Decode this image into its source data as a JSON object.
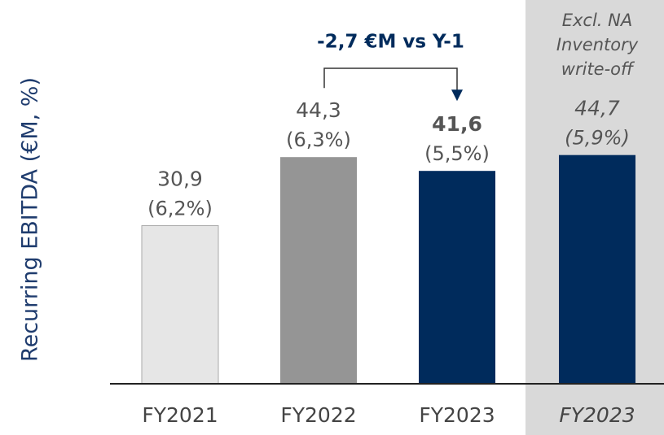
{
  "chart_data": {
    "type": "bar",
    "y_axis_label": "Recurring EBITDA (€M, %)",
    "categories": [
      "FY2021",
      "FY2022",
      "FY2023",
      "FY2023"
    ],
    "values": [
      30.9,
      44.3,
      41.6,
      44.7
    ],
    "value_labels": [
      "30,9",
      "44,3",
      "41,6",
      "44,7"
    ],
    "margin_labels": [
      "(6,2%)",
      "(6,3%)",
      "(5,5%)",
      "(5,9%)"
    ],
    "colors": [
      "#e6e6e6",
      "#959595",
      "#002b5c",
      "#002b5c"
    ],
    "ylim": [
      0,
      75
    ],
    "annotation": {
      "text": "-2,7 €M vs Y-1",
      "from": 1,
      "to": 2
    },
    "highlight": {
      "category_index": 3,
      "label": [
        "Excl. NA",
        "Inventory",
        "write-off"
      ],
      "color": "#d9d9d9"
    }
  }
}
